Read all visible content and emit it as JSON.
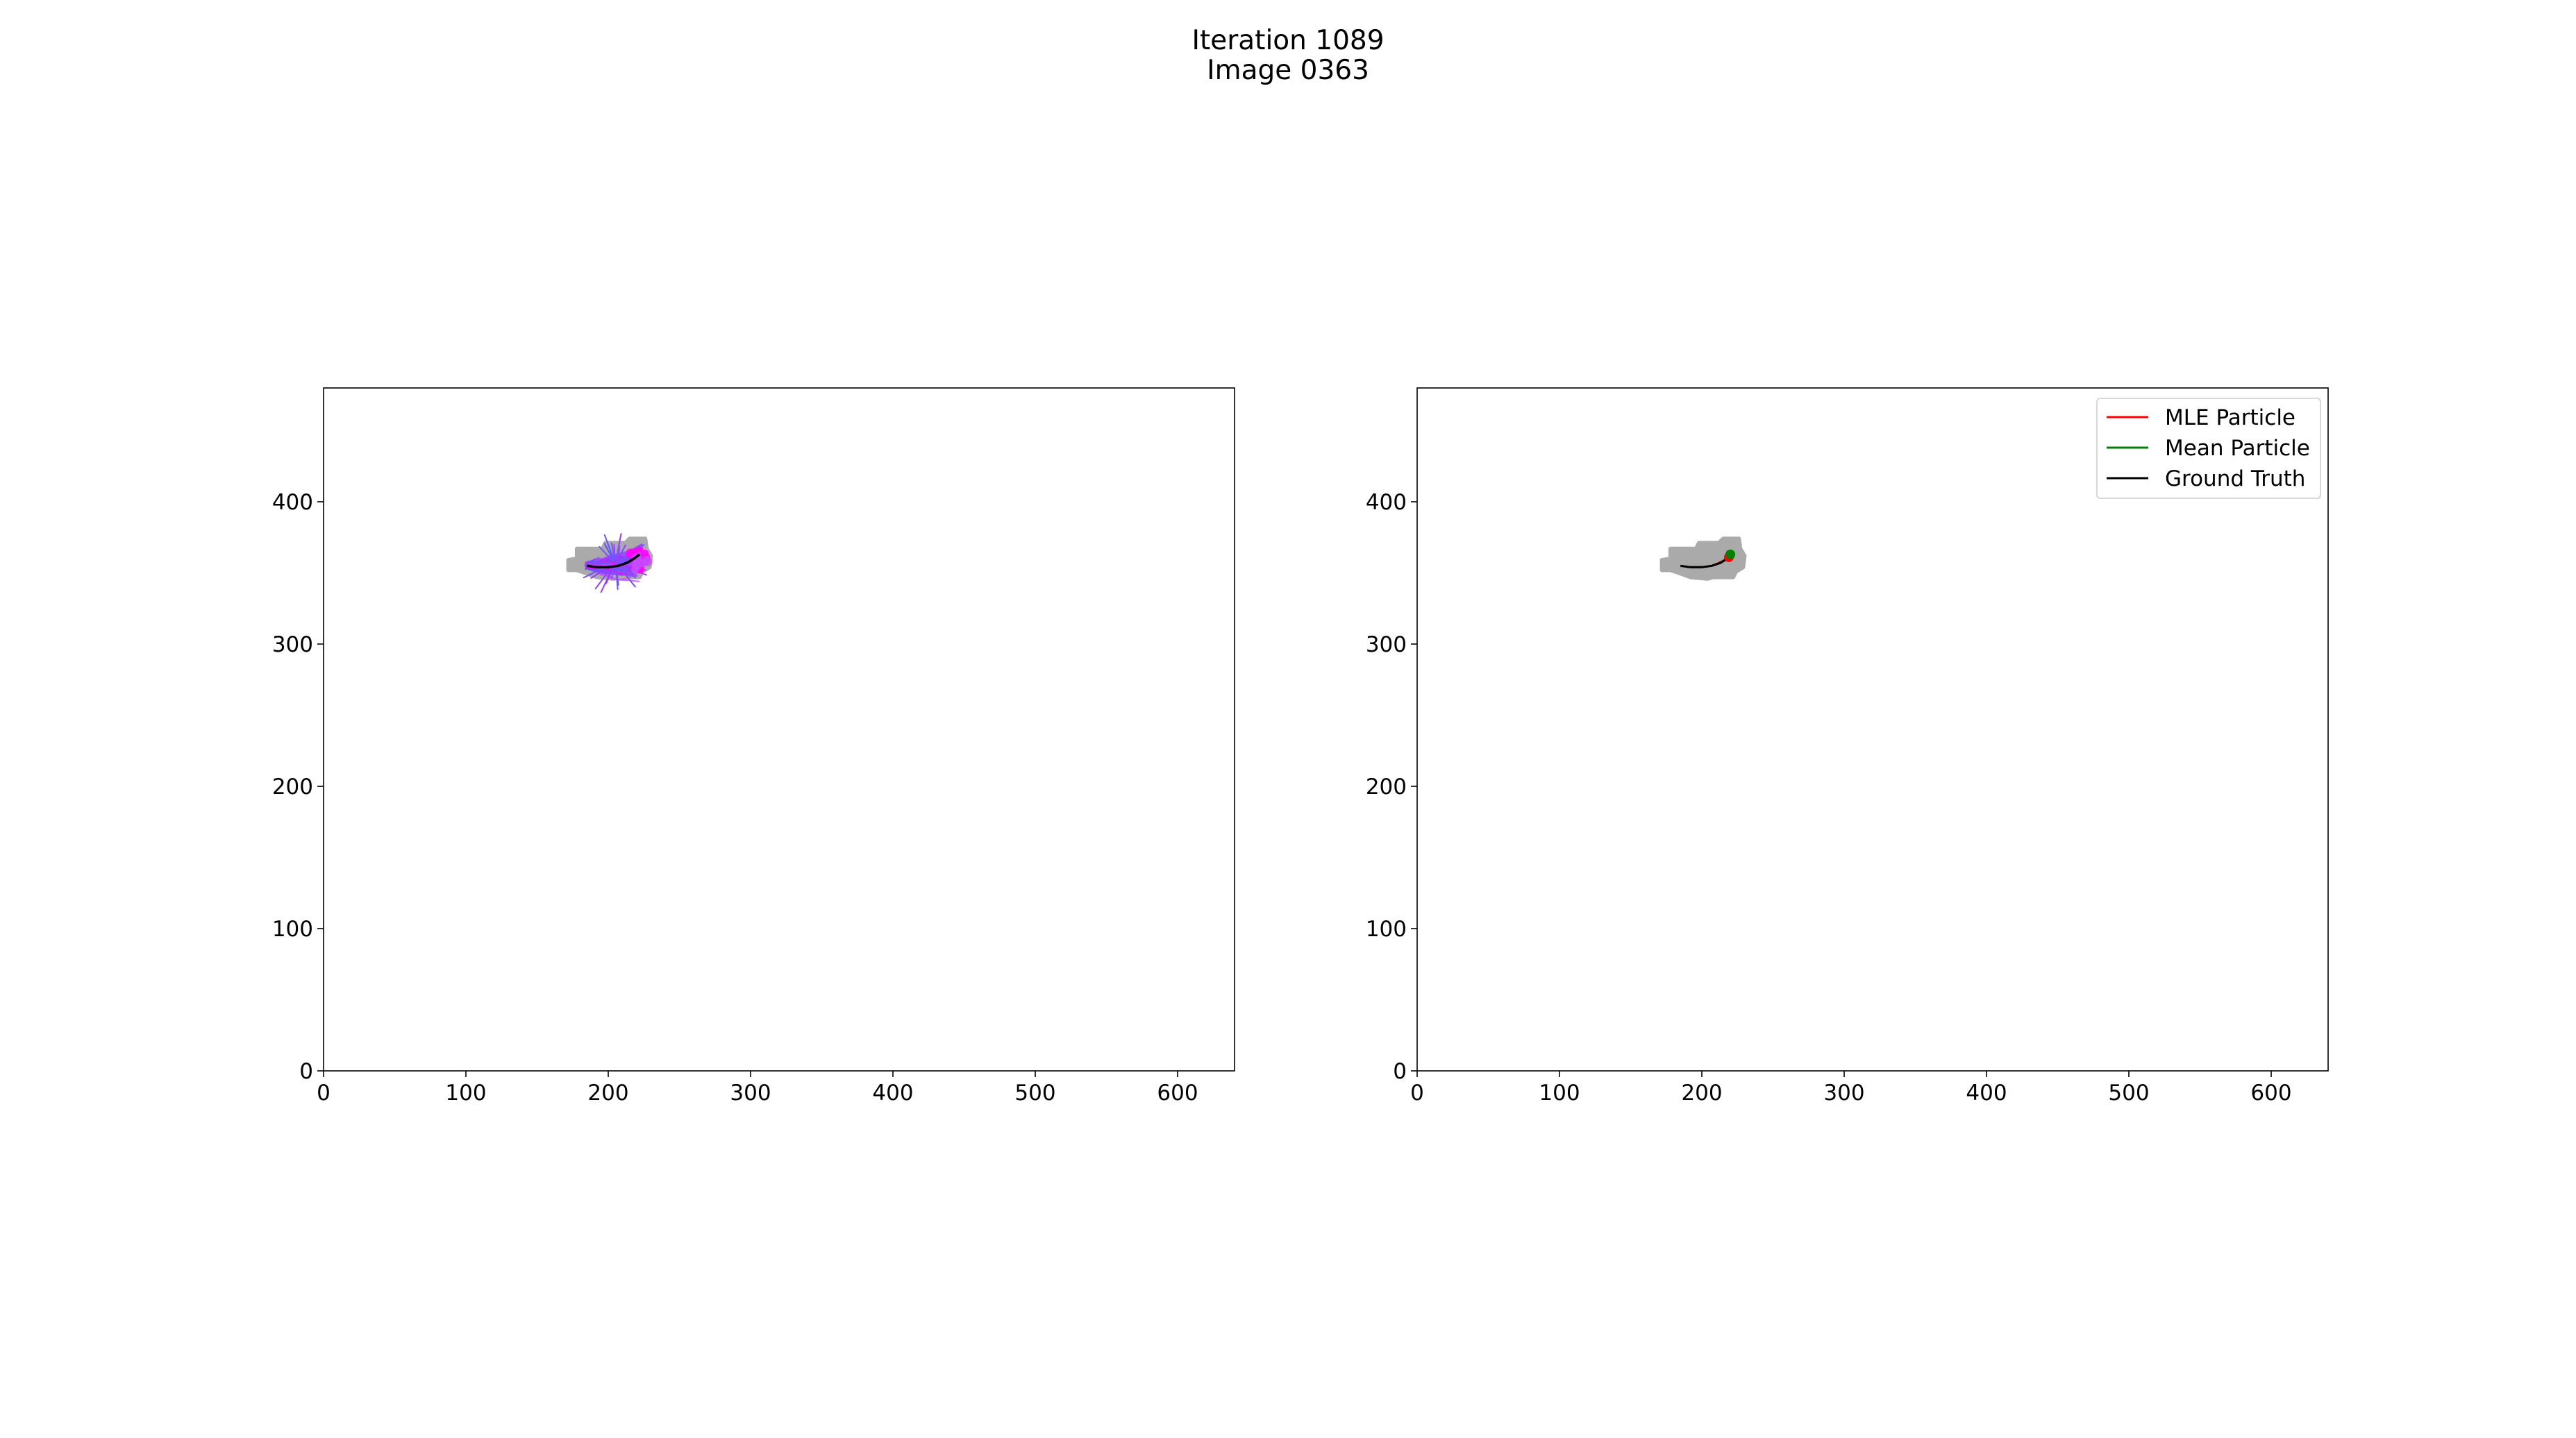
{
  "figure": {
    "title_line1": "Iteration 1089",
    "title_line2": "Image 0363"
  },
  "chart_data": [
    {
      "type": "line",
      "panel": "left",
      "xlim": [
        0,
        640
      ],
      "ylim": [
        0,
        480
      ],
      "xticks": [
        0,
        100,
        200,
        300,
        400,
        500,
        600
      ],
      "yticks": [
        0,
        100,
        200,
        300,
        400
      ],
      "grid": false,
      "mask": {
        "color": "#aaaaaa",
        "outline": [
          [
            172,
            359
          ],
          [
            178,
            360
          ],
          [
            178,
            367
          ],
          [
            196,
            367
          ],
          [
            198,
            371
          ],
          [
            212,
            371
          ],
          [
            215,
            374
          ],
          [
            226,
            374
          ],
          [
            227,
            367
          ],
          [
            230,
            362
          ],
          [
            229,
            354
          ],
          [
            224,
            351
          ],
          [
            222,
            347
          ],
          [
            208,
            347
          ],
          [
            204,
            346
          ],
          [
            192,
            347
          ],
          [
            184,
            350
          ],
          [
            178,
            352
          ],
          [
            172,
            352
          ]
        ]
      },
      "particle_cloud": {
        "colors": [
          "#5b5bff",
          "#7a52ff",
          "#9a3cff",
          "#c44dff",
          "#ff00ff"
        ],
        "center": [
          205,
          357
        ],
        "count": 120
      },
      "ground_truth": {
        "color": "#000000",
        "x": [
          185,
          192,
          200,
          207,
          213,
          218,
          222
        ],
        "y": [
          355,
          354,
          354,
          355,
          357,
          360,
          363
        ]
      }
    },
    {
      "type": "line",
      "panel": "right",
      "xlim": [
        0,
        640
      ],
      "ylim": [
        0,
        480
      ],
      "xticks": [
        0,
        100,
        200,
        300,
        400,
        500,
        600
      ],
      "yticks": [
        0,
        100,
        200,
        300,
        400
      ],
      "grid": false,
      "legend": {
        "position": "upper right",
        "entries": [
          {
            "label": "MLE Particle",
            "color": "#ff0000"
          },
          {
            "label": "Mean Particle",
            "color": "#008000"
          },
          {
            "label": "Ground Truth",
            "color": "#000000"
          }
        ]
      },
      "mask": {
        "color": "#aaaaaa",
        "outline": [
          [
            172,
            359
          ],
          [
            178,
            360
          ],
          [
            178,
            367
          ],
          [
            196,
            367
          ],
          [
            198,
            371
          ],
          [
            212,
            371
          ],
          [
            215,
            374
          ],
          [
            226,
            374
          ],
          [
            227,
            367
          ],
          [
            230,
            362
          ],
          [
            229,
            354
          ],
          [
            224,
            351
          ],
          [
            222,
            347
          ],
          [
            208,
            347
          ],
          [
            204,
            346
          ],
          [
            192,
            347
          ],
          [
            184,
            350
          ],
          [
            178,
            352
          ],
          [
            172,
            352
          ]
        ]
      },
      "series": [
        {
          "name": "MLE Particle",
          "color": "#ff0000",
          "x": [
            185,
            192,
            200,
            207,
            212,
            216,
            220
          ],
          "y": [
            355,
            354,
            354,
            355,
            357,
            359,
            361
          ]
        },
        {
          "name": "Mean Particle",
          "color": "#008000",
          "x": [
            185,
            192,
            200,
            207,
            213,
            217,
            221
          ],
          "y": [
            355,
            354,
            354,
            355,
            357,
            360,
            363
          ]
        },
        {
          "name": "Ground Truth",
          "color": "#000000",
          "x": [
            185,
            192,
            200,
            207,
            213,
            218,
            222
          ],
          "y": [
            355,
            354,
            354,
            355,
            357,
            360,
            363
          ]
        }
      ],
      "end_markers": [
        {
          "x": 219,
          "y": 361,
          "color": "#ff0000"
        },
        {
          "x": 220,
          "y": 363,
          "color": "#008000"
        }
      ]
    }
  ]
}
